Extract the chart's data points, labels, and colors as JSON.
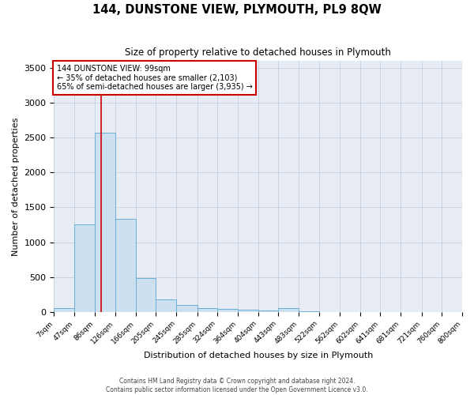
{
  "title": "144, DUNSTONE VIEW, PLYMOUTH, PL9 8QW",
  "subtitle": "Size of property relative to detached houses in Plymouth",
  "xlabel": "Distribution of detached houses by size in Plymouth",
  "ylabel": "Number of detached properties",
  "footer_line1": "Contains HM Land Registry data © Crown copyright and database right 2024.",
  "footer_line2": "Contains public sector information licensed under the Open Government Licence v3.0.",
  "bin_edges": [
    7,
    47,
    86,
    126,
    166,
    205,
    245,
    285,
    324,
    364,
    404,
    443,
    483,
    522,
    562,
    602,
    641,
    681,
    721,
    760,
    800
  ],
  "bar_heights": [
    50,
    1250,
    2570,
    1330,
    490,
    175,
    100,
    55,
    40,
    30,
    20,
    50,
    5,
    3,
    2,
    2,
    1,
    1,
    1,
    1
  ],
  "bar_color": "#cce0f0",
  "bar_edge_color": "#6aaed6",
  "property_size": 99,
  "vline_color": "#cc0000",
  "annotation_line1": "144 DUNSTONE VIEW: 99sqm",
  "annotation_line2": "← 35% of detached houses are smaller (2,103)",
  "annotation_line3": "65% of semi-detached houses are larger (3,935) →",
  "annotation_box_color": "#cc0000",
  "bg_color": "#ffffff",
  "plot_bg_color": "#e8edf5",
  "grid_color": "#c8d0de",
  "ylim": [
    0,
    3600
  ],
  "yticks": [
    0,
    500,
    1000,
    1500,
    2000,
    2500,
    3000,
    3500
  ]
}
